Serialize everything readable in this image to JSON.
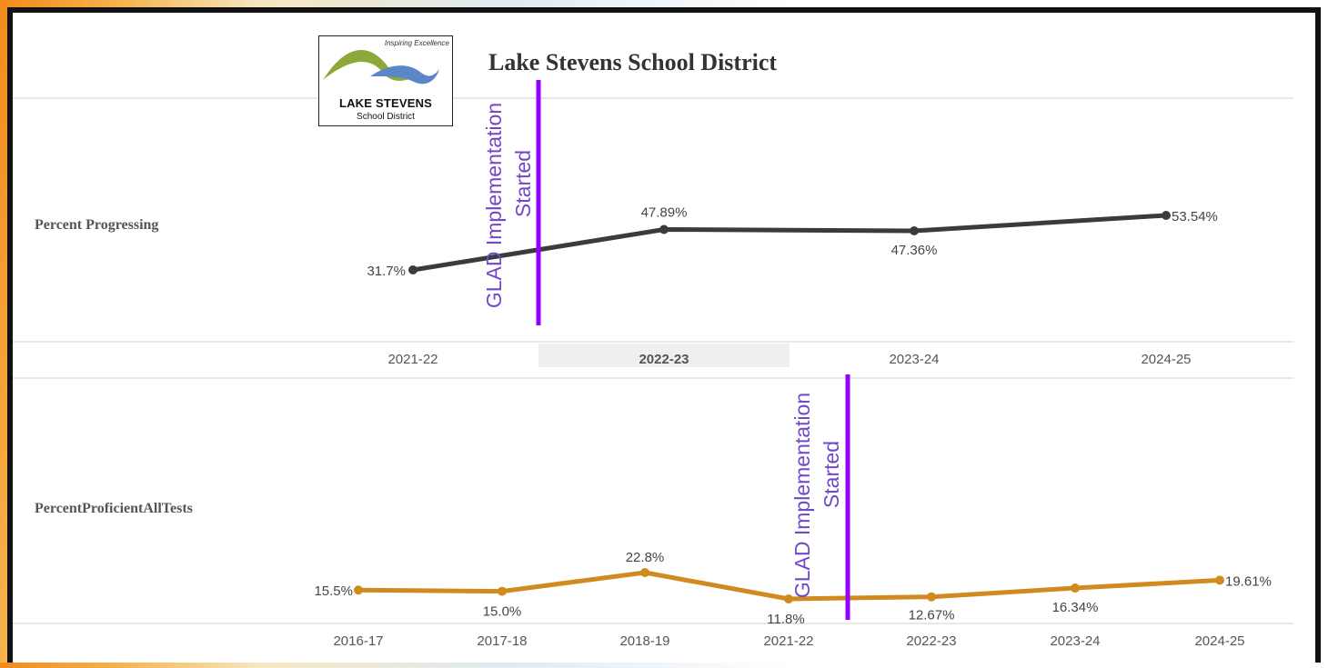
{
  "header": {
    "title": "Lake Stevens School District",
    "logo": {
      "tagline": "Inspiring Excellence",
      "name": "LAKE STEVENS",
      "subname": "School District"
    }
  },
  "chart_data": [
    {
      "type": "line",
      "row_label": "Percent Progressing",
      "categories": [
        "2021-22",
        "2022-23",
        "2023-24",
        "2024-25"
      ],
      "highlighted_category": "2022-23",
      "series": [
        {
          "values": [
            31.7,
            47.89,
            47.36,
            53.54
          ],
          "color": "#3b3b3b"
        }
      ],
      "data_labels": [
        "31.7%",
        "47.89%",
        "47.36%",
        "53.54%"
      ],
      "annotation": {
        "line1": "GLAD Implementation",
        "line2": "Started",
        "color": "#9400ff"
      }
    },
    {
      "type": "line",
      "row_label": "PercentProficientAllTests",
      "categories": [
        "2016-17",
        "2017-18",
        "2018-19",
        "2021-22",
        "2022-23",
        "2023-24",
        "2024-25"
      ],
      "series": [
        {
          "values": [
            15.5,
            15.0,
            22.8,
            11.8,
            12.67,
            16.34,
            19.61
          ],
          "color": "#d08a1e"
        }
      ],
      "data_labels": [
        "15.5%",
        "15.0%",
        "22.8%",
        "11.8%",
        "12.67%",
        "16.34%",
        "19.61%"
      ],
      "annotation": {
        "line1": "GLAD Implementation",
        "line2": "Started",
        "color": "#9400ff"
      }
    }
  ]
}
